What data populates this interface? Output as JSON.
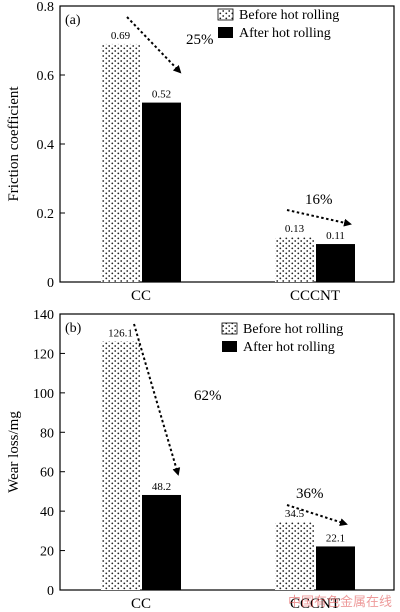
{
  "chart_data": [
    {
      "type": "bar",
      "panel_label": "(a)",
      "categories": [
        "CC",
        "CCCNT"
      ],
      "series": [
        {
          "name": "Before hot rolling",
          "values": [
            0.69,
            0.13
          ],
          "data_labels": [
            "0.69",
            "0.13"
          ],
          "pattern": "dotted"
        },
        {
          "name": "After hot rolling",
          "values": [
            0.52,
            0.11
          ],
          "data_labels": [
            "0.52",
            "0.11"
          ],
          "pattern": "solid-black"
        }
      ],
      "ylabel": "Friction coefficient",
      "xlabel": "",
      "ylim": [
        0,
        0.8
      ],
      "yticks": [
        0,
        0.2,
        0.4,
        0.6,
        0.8
      ],
      "ytick_labels": [
        "0",
        "0.2",
        "0.4",
        "0.6",
        "0.8"
      ],
      "annotations": [
        "25%",
        "16%"
      ],
      "legend_position": "top-right",
      "grid": false
    },
    {
      "type": "bar",
      "panel_label": "(b)",
      "categories": [
        "CC",
        "CCCNT"
      ],
      "series": [
        {
          "name": "Before hot rolling",
          "values": [
            126.1,
            34.5
          ],
          "data_labels": [
            "126.1",
            "34.5"
          ],
          "pattern": "dotted"
        },
        {
          "name": "After hot rolling",
          "values": [
            48.2,
            22.1
          ],
          "data_labels": [
            "48.2",
            "22.1"
          ],
          "pattern": "solid-black"
        }
      ],
      "ylabel": "Wear loss/mg",
      "xlabel": "",
      "ylim": [
        0,
        140
      ],
      "yticks": [
        0,
        20,
        40,
        60,
        80,
        100,
        120,
        140
      ],
      "ytick_labels": [
        "0",
        "20",
        "40",
        "60",
        "80",
        "100",
        "120",
        "140"
      ],
      "annotations": [
        "62%",
        "36%"
      ],
      "legend_position": "top-right",
      "grid": false
    }
  ],
  "colors": {
    "solid_bar": "#000000",
    "pattern_dot": "#222222",
    "axis": "#000000",
    "watermark": "#e04848"
  },
  "watermark": "中国有色金属在线"
}
